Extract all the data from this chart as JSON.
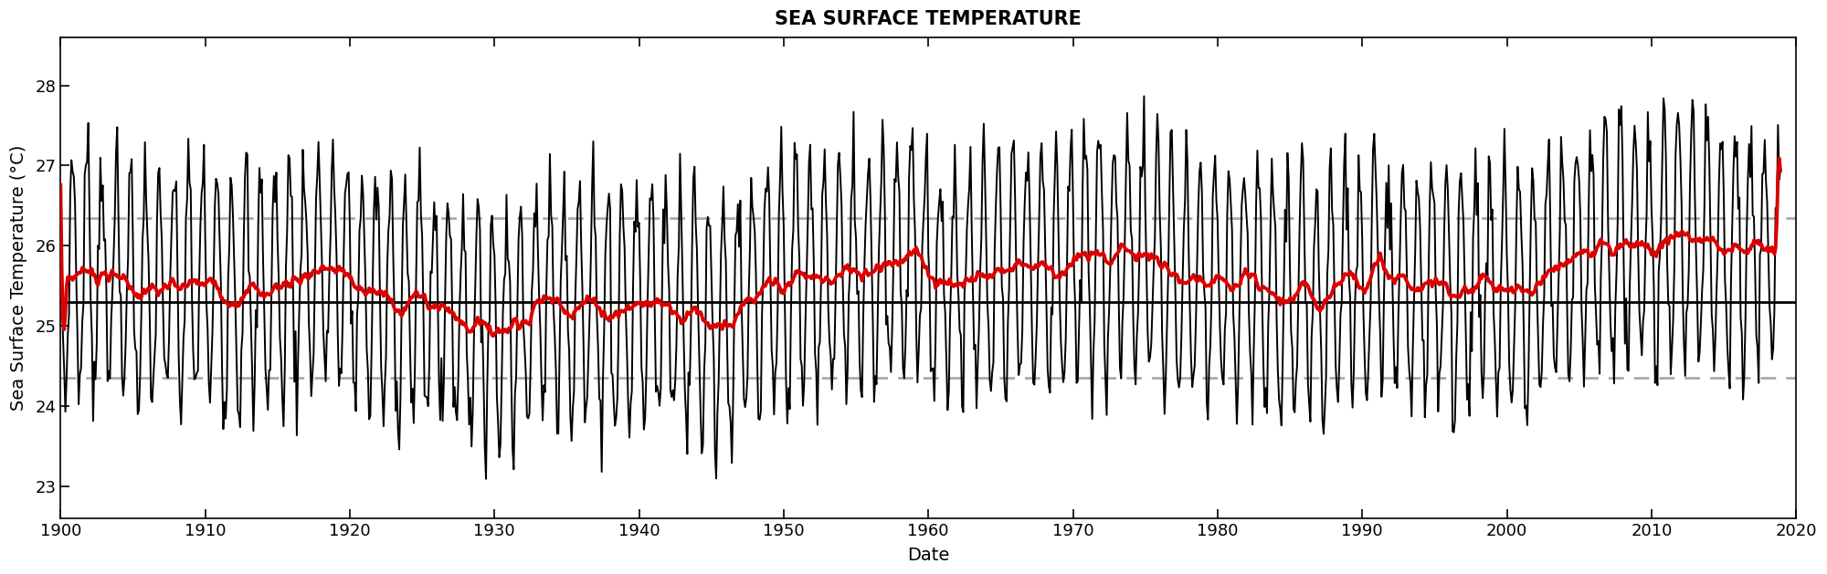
{
  "title": "SEA SURFACE TEMPERATURE",
  "xlabel": "Date",
  "ylabel": "Sea Surface Temperature (°C)",
  "ylim": [
    22.6,
    28.6
  ],
  "yticks": [
    23,
    24,
    25,
    26,
    27,
    28
  ],
  "xlim": [
    1900,
    2020
  ],
  "xticks": [
    1900,
    1910,
    1920,
    1930,
    1940,
    1950,
    1960,
    1970,
    1980,
    1990,
    2000,
    2010,
    2020
  ],
  "mean_val": 25.3,
  "upper_std": 26.35,
  "lower_std": 24.35,
  "raw_color": "#000000",
  "smooth_color": "#dd0000",
  "mean_color": "#000000",
  "std_color": "#aaaaaa",
  "background_color": "#ffffff",
  "title_fontsize": 15,
  "label_fontsize": 14,
  "tick_fontsize": 13,
  "raw_linewidth": 1.4,
  "smooth_linewidth": 2.8,
  "mean_linewidth": 2.0,
  "std_linewidth": 2.0,
  "seasonal_amplitude": 1.45,
  "noise_std": 0.28,
  "trend_magnitude": 0.6,
  "smooth_window": 12
}
